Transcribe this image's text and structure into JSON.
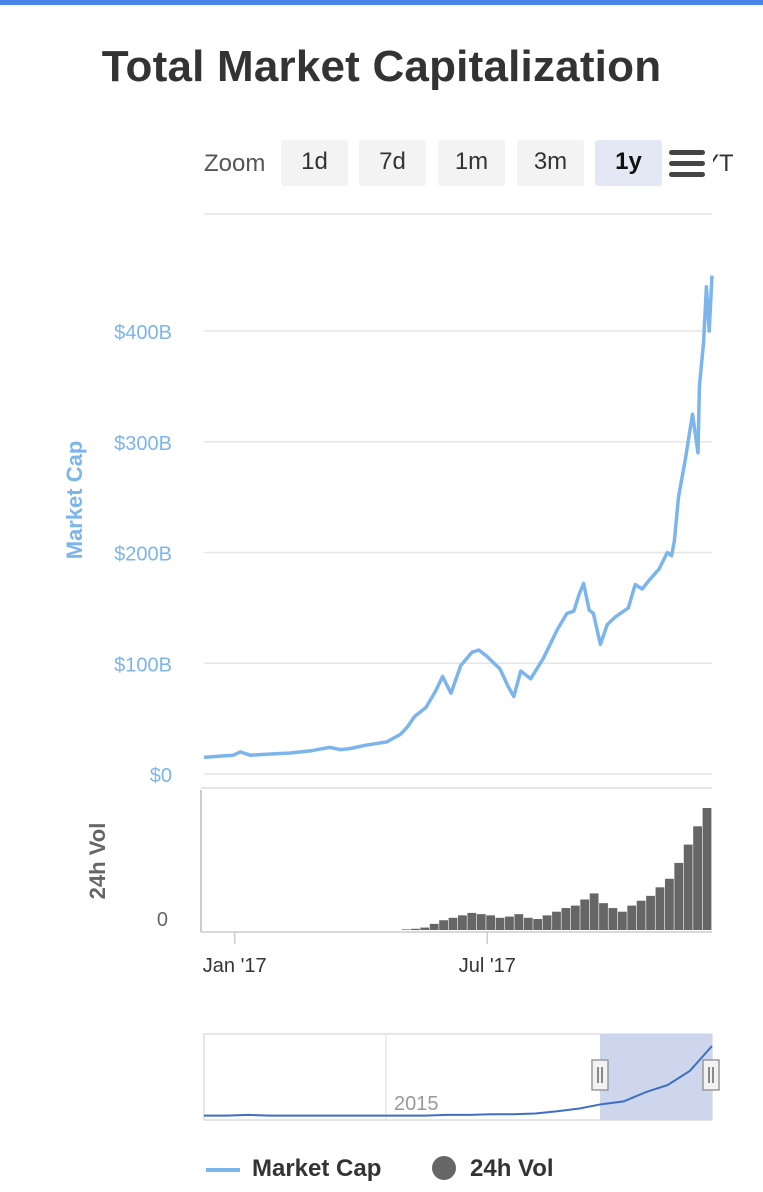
{
  "header": {
    "title": "Total Market Capitalization"
  },
  "zoom": {
    "label": "Zoom",
    "buttons": [
      "1d",
      "7d",
      "1m",
      "3m",
      "1y"
    ],
    "active": "1y",
    "cut_text": "YTD"
  },
  "colors": {
    "market_cap": "#7cb5ec",
    "volume": "#666666",
    "navigator_line": "#3f6fc4",
    "navigator_mask": "#cdd6ec",
    "accent_top": "#4a86e8"
  },
  "icons": {
    "menu": "hamburger-menu-icon"
  },
  "chart_data": [
    {
      "type": "line",
      "title": "Total Market Capitalization",
      "ylabel": "Market Cap",
      "y_ticks": [
        "$0",
        "$100B",
        "$200B",
        "$300B",
        "$400B"
      ],
      "ylim": [
        0,
        400
      ],
      "y_unit": "B USD",
      "x_ticks": [
        "Jan '17",
        "Jul '17"
      ],
      "grid": true,
      "series": [
        {
          "name": "Market Cap",
          "x": [
            "2016-12-10",
            "2016-12-20",
            "2016-12-31",
            "2017-01-05",
            "2017-01-12",
            "2017-01-25",
            "2017-02-10",
            "2017-02-25",
            "2017-03-10",
            "2017-03-18",
            "2017-03-25",
            "2017-04-05",
            "2017-04-20",
            "2017-04-30",
            "2017-05-05",
            "2017-05-10",
            "2017-05-18",
            "2017-05-25",
            "2017-05-30",
            "2017-06-05",
            "2017-06-12",
            "2017-06-20",
            "2017-06-25",
            "2017-07-01",
            "2017-07-05",
            "2017-07-10",
            "2017-07-16",
            "2017-07-20",
            "2017-07-25",
            "2017-08-01",
            "2017-08-10",
            "2017-08-20",
            "2017-08-27",
            "2017-09-01",
            "2017-09-05",
            "2017-09-08",
            "2017-09-12",
            "2017-09-15",
            "2017-09-20",
            "2017-09-25",
            "2017-10-01",
            "2017-10-10",
            "2017-10-15",
            "2017-10-20",
            "2017-10-25",
            "2017-11-01",
            "2017-11-07",
            "2017-11-10",
            "2017-11-12",
            "2017-11-15",
            "2017-11-20",
            "2017-11-25",
            "2017-11-29",
            "2017-11-30",
            "2017-12-03",
            "2017-12-05",
            "2017-12-07",
            "2017-12-09"
          ],
          "values": [
            15,
            16,
            17,
            20,
            17,
            18,
            19,
            21,
            24,
            22,
            23,
            26,
            29,
            36,
            43,
            52,
            60,
            75,
            88,
            73,
            98,
            110,
            112,
            106,
            101,
            95,
            79,
            70,
            93,
            86,
            104,
            130,
            145,
            147,
            163,
            172,
            148,
            145,
            117,
            135,
            142,
            150,
            171,
            167,
            175,
            185,
            200,
            197,
            210,
            250,
            285,
            325,
            290,
            350,
            390,
            440,
            400,
            450
          ]
        }
      ]
    },
    {
      "type": "bar",
      "ylabel": "24h Vol",
      "y_ticks": [
        "0"
      ],
      "series": [
        {
          "name": "24h Vol",
          "x_range": [
            "2016-12-10",
            "2017-12-09"
          ],
          "relative_values_weekly": [
            0,
            0,
            0,
            0,
            0,
            0,
            0,
            0,
            0,
            0,
            0,
            0,
            0,
            0,
            0,
            0,
            0,
            0,
            0,
            0,
            0,
            0.005,
            0.01,
            0.02,
            0.05,
            0.08,
            0.1,
            0.12,
            0.14,
            0.13,
            0.12,
            0.1,
            0.11,
            0.13,
            0.1,
            0.09,
            0.12,
            0.15,
            0.18,
            0.2,
            0.25,
            0.3,
            0.22,
            0.18,
            0.15,
            0.2,
            0.24,
            0.28,
            0.35,
            0.42,
            0.55,
            0.7,
            0.85,
            1.0
          ]
        }
      ]
    },
    {
      "type": "area",
      "name": "navigator",
      "x_ticks": [
        "2015"
      ],
      "relative_values": [
        0.02,
        0.02,
        0.03,
        0.02,
        0.02,
        0.02,
        0.02,
        0.02,
        0.02,
        0.02,
        0.02,
        0.03,
        0.03,
        0.04,
        0.04,
        0.05,
        0.08,
        0.12,
        0.18,
        0.22,
        0.35,
        0.45,
        0.65,
        1.0
      ],
      "selected_range": [
        "2016-12-10",
        "2017-12-09"
      ]
    }
  ],
  "legend": {
    "items": [
      {
        "label": "Market Cap",
        "marker": "line"
      },
      {
        "label": "24h Vol",
        "marker": "circle"
      }
    ]
  }
}
